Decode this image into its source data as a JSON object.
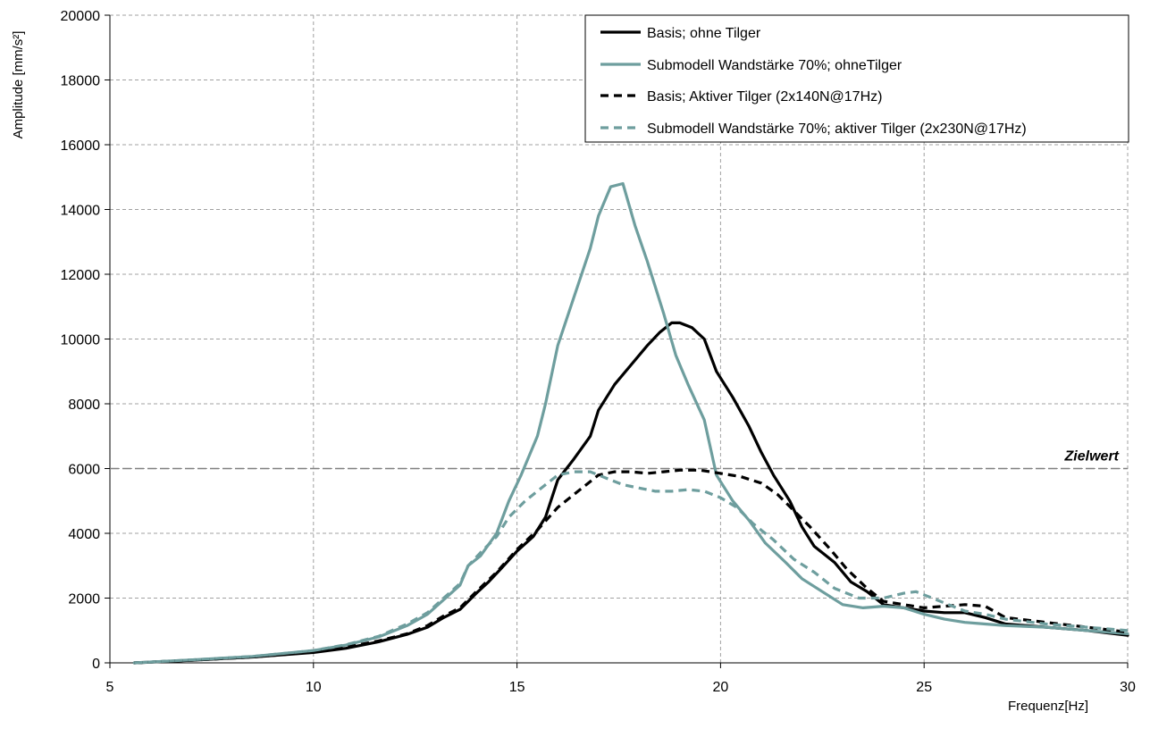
{
  "chart_data": {
    "type": "line",
    "xlabel": "Frequenz[Hz]",
    "ylabel": "Amplitude [mm/s²]",
    "xlim": [
      5,
      30
    ],
    "ylim": [
      0,
      20000
    ],
    "xticks": [
      5,
      10,
      15,
      20,
      25,
      30
    ],
    "yticks": [
      0,
      2000,
      4000,
      6000,
      8000,
      10000,
      12000,
      14000,
      16000,
      18000,
      20000
    ],
    "grid": true,
    "legend_position": "top-right",
    "reference_line": {
      "label": "Zielwert",
      "value": 6000,
      "color": "#808080"
    },
    "series": [
      {
        "name": "Basis; ohne Tilger",
        "color": "#000000",
        "dash": "solid",
        "points": [
          [
            5.6,
            0
          ],
          [
            7,
            80
          ],
          [
            8.5,
            180
          ],
          [
            10,
            320
          ],
          [
            10.8,
            450
          ],
          [
            11.6,
            650
          ],
          [
            12.3,
            880
          ],
          [
            12.8,
            1100
          ],
          [
            13.2,
            1400
          ],
          [
            13.6,
            1650
          ],
          [
            14,
            2150
          ],
          [
            14.3,
            2500
          ],
          [
            14.6,
            2900
          ],
          [
            15,
            3450
          ],
          [
            15.4,
            3900
          ],
          [
            15.7,
            4500
          ],
          [
            16,
            5650
          ],
          [
            16.4,
            6300
          ],
          [
            16.8,
            7000
          ],
          [
            17,
            7800
          ],
          [
            17.4,
            8600
          ],
          [
            17.8,
            9200
          ],
          [
            18.2,
            9800
          ],
          [
            18.5,
            10200
          ],
          [
            18.8,
            10500
          ],
          [
            19,
            10500
          ],
          [
            19.3,
            10350
          ],
          [
            19.6,
            10000
          ],
          [
            19.9,
            9000
          ],
          [
            20.3,
            8200
          ],
          [
            20.7,
            7300
          ],
          [
            21,
            6500
          ],
          [
            21.3,
            5800
          ],
          [
            21.7,
            5000
          ],
          [
            22,
            4200
          ],
          [
            22.3,
            3600
          ],
          [
            22.8,
            3100
          ],
          [
            23.2,
            2500
          ],
          [
            23.6,
            2200
          ],
          [
            24,
            1800
          ],
          [
            24.5,
            1700
          ],
          [
            25,
            1600
          ],
          [
            25.5,
            1550
          ],
          [
            26,
            1550
          ],
          [
            26.5,
            1400
          ],
          [
            27,
            1200
          ],
          [
            28,
            1100
          ],
          [
            29,
            1000
          ],
          [
            30,
            850
          ]
        ]
      },
      {
        "name": "Submodell Wandstärke 70%; ohneTilger",
        "color": "#6e9e9e",
        "dash": "solid",
        "points": [
          [
            5.6,
            0
          ],
          [
            7,
            90
          ],
          [
            8.5,
            200
          ],
          [
            10,
            380
          ],
          [
            10.8,
            550
          ],
          [
            11.6,
            800
          ],
          [
            12.3,
            1150
          ],
          [
            12.8,
            1500
          ],
          [
            13.2,
            1950
          ],
          [
            13.6,
            2400
          ],
          [
            13.8,
            3000
          ],
          [
            14.1,
            3300
          ],
          [
            14.5,
            4000
          ],
          [
            14.8,
            5000
          ],
          [
            15.1,
            5800
          ],
          [
            15.5,
            7000
          ],
          [
            15.7,
            8000
          ],
          [
            16,
            9800
          ],
          [
            16.4,
            11300
          ],
          [
            16.8,
            12800
          ],
          [
            17,
            13800
          ],
          [
            17.3,
            14700
          ],
          [
            17.6,
            14800
          ],
          [
            17.9,
            13500
          ],
          [
            18.2,
            12400
          ],
          [
            18.6,
            10800
          ],
          [
            18.9,
            9500
          ],
          [
            19.2,
            8600
          ],
          [
            19.6,
            7500
          ],
          [
            19.9,
            5800
          ],
          [
            20.3,
            5000
          ],
          [
            20.7,
            4400
          ],
          [
            21.1,
            3700
          ],
          [
            21.6,
            3100
          ],
          [
            22,
            2600
          ],
          [
            22.5,
            2200
          ],
          [
            23,
            1800
          ],
          [
            23.5,
            1700
          ],
          [
            24,
            1750
          ],
          [
            24.5,
            1700
          ],
          [
            25,
            1500
          ],
          [
            25.5,
            1350
          ],
          [
            26,
            1250
          ],
          [
            26.5,
            1200
          ],
          [
            27,
            1150
          ],
          [
            28,
            1100
          ],
          [
            29,
            1000
          ],
          [
            30,
            900
          ]
        ]
      },
      {
        "name": "Basis; Aktiver Tilger (2x140N@17Hz)",
        "color": "#000000",
        "dash": "dashed",
        "points": [
          [
            5.6,
            0
          ],
          [
            7,
            80
          ],
          [
            8.5,
            180
          ],
          [
            10,
            330
          ],
          [
            10.8,
            480
          ],
          [
            11.6,
            680
          ],
          [
            12.3,
            900
          ],
          [
            12.8,
            1150
          ],
          [
            13.2,
            1450
          ],
          [
            13.6,
            1700
          ],
          [
            14,
            2200
          ],
          [
            14.5,
            2800
          ],
          [
            15,
            3500
          ],
          [
            15.5,
            4100
          ],
          [
            16,
            4800
          ],
          [
            16.5,
            5300
          ],
          [
            17,
            5800
          ],
          [
            17.4,
            5900
          ],
          [
            17.8,
            5900
          ],
          [
            18.2,
            5850
          ],
          [
            18.6,
            5900
          ],
          [
            19,
            5950
          ],
          [
            19.5,
            5950
          ],
          [
            20,
            5850
          ],
          [
            20.5,
            5750
          ],
          [
            21,
            5550
          ],
          [
            21.4,
            5200
          ],
          [
            21.8,
            4700
          ],
          [
            22.2,
            4200
          ],
          [
            22.7,
            3500
          ],
          [
            23.1,
            2900
          ],
          [
            23.6,
            2300
          ],
          [
            24,
            1900
          ],
          [
            24.5,
            1800
          ],
          [
            25,
            1700
          ],
          [
            25.5,
            1750
          ],
          [
            26,
            1800
          ],
          [
            26.5,
            1750
          ],
          [
            27,
            1400
          ],
          [
            28,
            1250
          ],
          [
            29,
            1100
          ],
          [
            30,
            950
          ]
        ]
      },
      {
        "name": "Submodell Wandstärke 70%; aktiver Tilger (2x230N@17Hz)",
        "color": "#6e9e9e",
        "dash": "dashed",
        "points": [
          [
            5.6,
            0
          ],
          [
            7,
            90
          ],
          [
            8.5,
            200
          ],
          [
            10,
            380
          ],
          [
            10.8,
            560
          ],
          [
            11.6,
            820
          ],
          [
            12.3,
            1200
          ],
          [
            12.8,
            1550
          ],
          [
            13.2,
            2000
          ],
          [
            13.6,
            2450
          ],
          [
            13.8,
            3000
          ],
          [
            14.1,
            3400
          ],
          [
            14.5,
            3900
          ],
          [
            14.8,
            4500
          ],
          [
            15.2,
            5000
          ],
          [
            15.6,
            5400
          ],
          [
            16,
            5800
          ],
          [
            16.4,
            5900
          ],
          [
            16.8,
            5900
          ],
          [
            17.2,
            5700
          ],
          [
            17.6,
            5500
          ],
          [
            18,
            5400
          ],
          [
            18.4,
            5300
          ],
          [
            18.8,
            5300
          ],
          [
            19.2,
            5350
          ],
          [
            19.6,
            5300
          ],
          [
            20,
            5100
          ],
          [
            20.4,
            4800
          ],
          [
            20.8,
            4300
          ],
          [
            21.3,
            3800
          ],
          [
            21.8,
            3200
          ],
          [
            22.3,
            2800
          ],
          [
            22.8,
            2300
          ],
          [
            23.4,
            2000
          ],
          [
            24,
            2000
          ],
          [
            24.5,
            2150
          ],
          [
            24.8,
            2200
          ],
          [
            25.2,
            2000
          ],
          [
            25.6,
            1800
          ],
          [
            26,
            1600
          ],
          [
            26.5,
            1500
          ],
          [
            27,
            1350
          ],
          [
            28,
            1200
          ],
          [
            29,
            1100
          ],
          [
            30,
            1000
          ]
        ]
      }
    ]
  }
}
